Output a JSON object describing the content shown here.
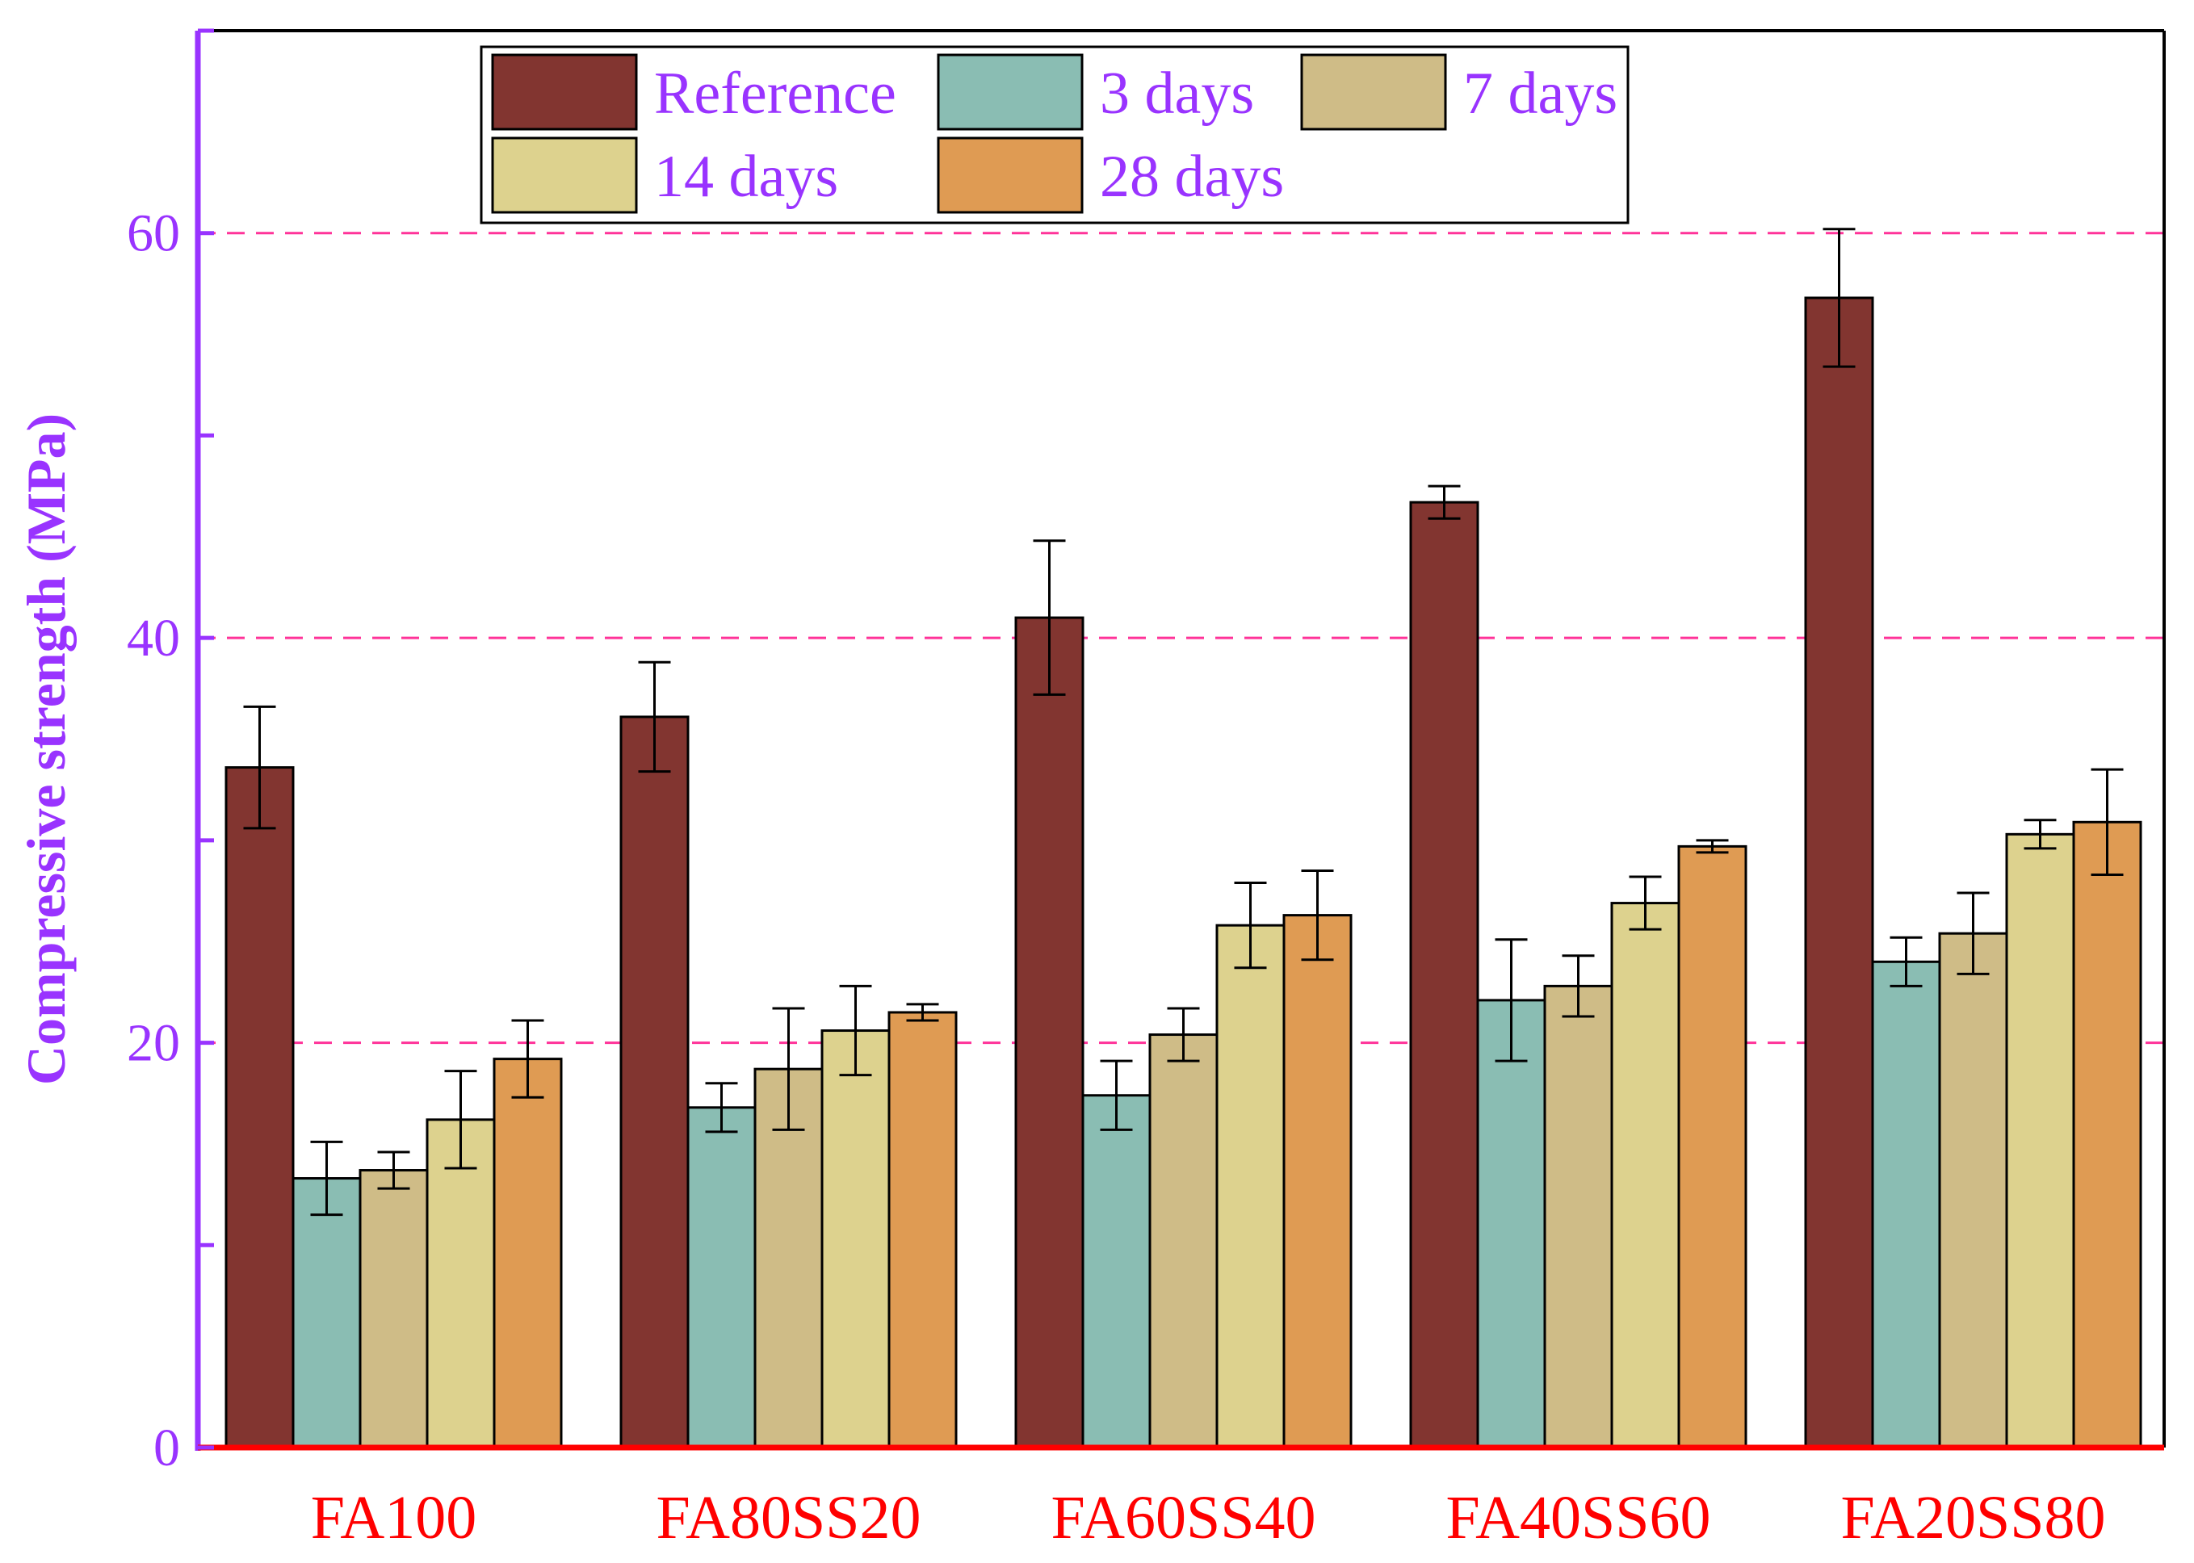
{
  "chart_data": {
    "type": "bar",
    "title": "",
    "xlabel": "",
    "ylabel": "Compressive strength (MPa)",
    "ylim": [
      0,
      70
    ],
    "yticks": [
      0,
      20,
      40,
      60
    ],
    "grid": "dashed horizontal at labeled ticks",
    "categories": [
      "FA100",
      "FA80SS20",
      "FA60SS40",
      "FA40SS60",
      "FA20SS80"
    ],
    "series": [
      {
        "name": "Reference",
        "color": "#823530",
        "values": [
          33.6,
          36.1,
          41.0,
          46.7,
          56.8
        ],
        "errors": [
          3.0,
          2.7,
          3.8,
          0.8,
          3.4
        ]
      },
      {
        "name": "3 days",
        "color": "#8ABDB3",
        "values": [
          13.3,
          16.8,
          17.4,
          22.1,
          24.0
        ],
        "errors": [
          1.8,
          1.2,
          1.7,
          3.0,
          1.2
        ]
      },
      {
        "name": "7 days",
        "color": "#CFBC87",
        "values": [
          13.7,
          18.7,
          20.4,
          22.8,
          25.4
        ],
        "errors": [
          0.9,
          3.0,
          1.3,
          1.5,
          2.0
        ]
      },
      {
        "name": "14 days",
        "color": "#DDD28E",
        "values": [
          16.2,
          20.6,
          25.8,
          26.9,
          30.3
        ],
        "errors": [
          2.4,
          2.2,
          2.1,
          1.3,
          0.7
        ]
      },
      {
        "name": "28 days",
        "color": "#DF9B53",
        "values": [
          19.2,
          21.5,
          26.3,
          29.7,
          30.9
        ],
        "errors": [
          1.9,
          0.4,
          2.2,
          0.3,
          2.6
        ]
      }
    ],
    "legend_position": "top-left",
    "colors": {
      "left_axis": "#9933FF",
      "bottom_axis": "#FF0000",
      "frame": "#000000",
      "grid": "#FF3399",
      "category_labels": "#FF0000",
      "tick_labels": "#9933FF",
      "ylabel": "#9933FF",
      "legend_text": "#9933FF"
    }
  }
}
